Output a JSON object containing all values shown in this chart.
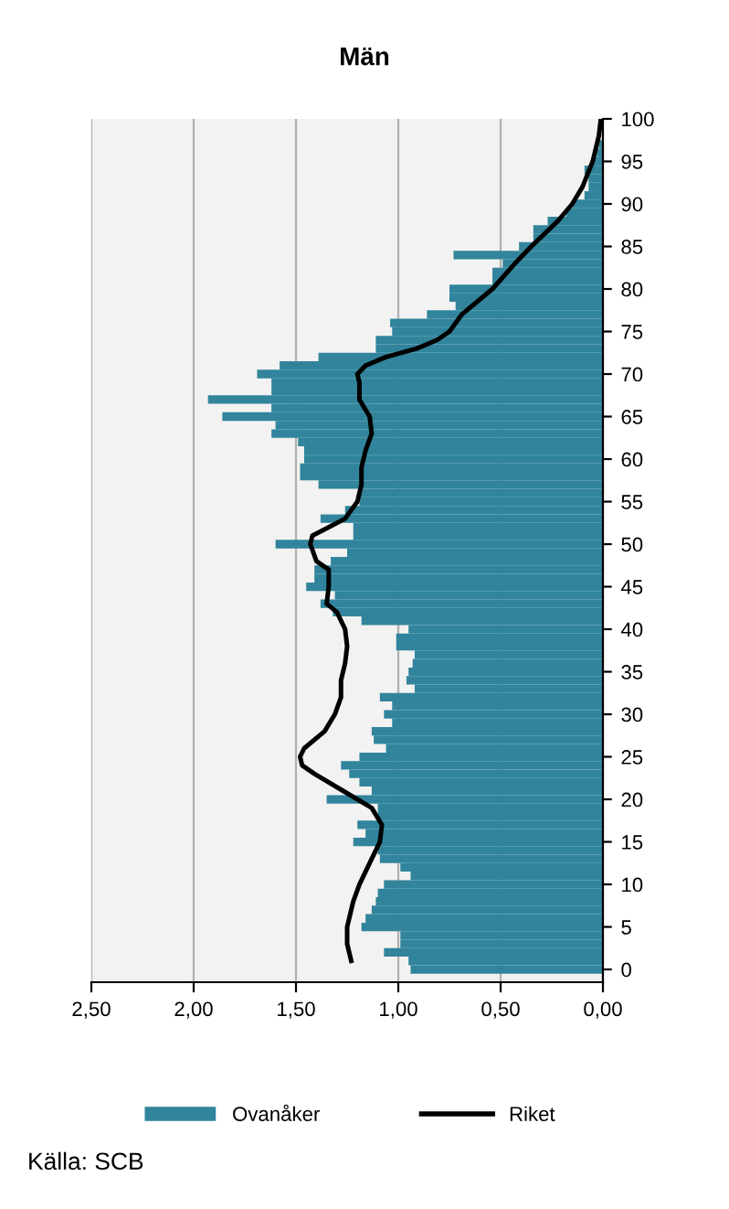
{
  "chart_data": {
    "type": "bar",
    "orientation": "horizontal",
    "title": "Män",
    "x": [
      0,
      1,
      2,
      3,
      4,
      5,
      6,
      7,
      8,
      9,
      10,
      11,
      12,
      13,
      14,
      15,
      16,
      17,
      18,
      19,
      20,
      21,
      22,
      23,
      24,
      25,
      26,
      27,
      28,
      29,
      30,
      31,
      32,
      33,
      34,
      35,
      36,
      37,
      38,
      39,
      40,
      41,
      42,
      43,
      44,
      45,
      46,
      47,
      48,
      49,
      50,
      51,
      52,
      53,
      54,
      55,
      56,
      57,
      58,
      59,
      60,
      61,
      62,
      63,
      64,
      65,
      66,
      67,
      68,
      69,
      70,
      71,
      72,
      73,
      74,
      75,
      76,
      77,
      78,
      79,
      80,
      81,
      82,
      83,
      84,
      85,
      86,
      87,
      88,
      89,
      90,
      91,
      92,
      93,
      94,
      95,
      96,
      97,
      98,
      99,
      100
    ],
    "series": [
      {
        "name": "Ovanåker",
        "color": "#31849b",
        "values": [
          0.94,
          0.95,
          1.07,
          0.99,
          0.99,
          1.18,
          1.16,
          1.13,
          1.11,
          1.1,
          1.07,
          0.94,
          0.99,
          1.09,
          1.1,
          1.22,
          1.16,
          1.2,
          1.1,
          1.1,
          1.35,
          1.13,
          1.19,
          1.24,
          1.28,
          1.19,
          1.06,
          1.12,
          1.13,
          1.03,
          1.07,
          1.03,
          1.09,
          0.92,
          0.96,
          0.95,
          0.93,
          0.92,
          1.01,
          1.01,
          0.95,
          1.18,
          1.32,
          1.38,
          1.31,
          1.45,
          1.41,
          1.41,
          1.33,
          1.25,
          1.6,
          1.22,
          1.22,
          1.38,
          1.26,
          1.19,
          1.19,
          1.39,
          1.48,
          1.48,
          1.46,
          1.46,
          1.49,
          1.62,
          1.6,
          1.86,
          1.62,
          1.93,
          1.62,
          1.62,
          1.69,
          1.58,
          1.39,
          1.11,
          1.11,
          1.03,
          1.04,
          0.86,
          0.72,
          0.75,
          0.75,
          0.54,
          0.54,
          0.49,
          0.73,
          0.41,
          0.34,
          0.34,
          0.27,
          0.18,
          0.15,
          0.09,
          0.07,
          0.07,
          0.09,
          0.05,
          0.03,
          0.02,
          null,
          null,
          0.01
        ]
      },
      {
        "name": "Riket",
        "type": "line",
        "color": "#000000",
        "x": [
          1,
          3,
          5,
          8,
          10,
          13,
          15,
          17,
          19,
          21,
          23,
          24,
          25,
          26,
          28,
          30,
          32,
          34,
          36,
          38,
          40,
          42,
          43,
          45,
          47,
          48,
          50,
          51,
          52,
          53,
          55,
          57,
          59,
          61,
          63,
          65,
          67,
          69,
          70,
          71,
          72,
          73,
          74,
          75,
          77,
          80,
          83,
          85,
          88,
          90,
          92,
          95,
          98,
          100
        ],
        "values": [
          1.23,
          1.25,
          1.25,
          1.22,
          1.19,
          1.13,
          1.09,
          1.08,
          1.13,
          1.27,
          1.41,
          1.47,
          1.48,
          1.46,
          1.36,
          1.31,
          1.28,
          1.28,
          1.26,
          1.25,
          1.26,
          1.3,
          1.35,
          1.34,
          1.34,
          1.4,
          1.43,
          1.42,
          1.34,
          1.26,
          1.2,
          1.18,
          1.18,
          1.16,
          1.13,
          1.14,
          1.19,
          1.19,
          1.2,
          1.16,
          1.06,
          0.91,
          0.81,
          0.75,
          0.69,
          0.54,
          0.43,
          0.35,
          0.22,
          0.15,
          0.1,
          0.05,
          0.02,
          0.01
        ]
      }
    ],
    "xlim": [
      2.5,
      0
    ],
    "xticks": [
      {
        "value": 2.5,
        "label": "2,50"
      },
      {
        "value": 2.0,
        "label": "2,00"
      },
      {
        "value": 1.5,
        "label": "1,50"
      },
      {
        "value": 1.0,
        "label": "1,00"
      },
      {
        "value": 0.5,
        "label": "0,50"
      },
      {
        "value": 0,
        "label": "0,00"
      }
    ],
    "ylim": [
      -1.5,
      100
    ],
    "yticks": [
      0,
      5,
      10,
      15,
      20,
      25,
      30,
      35,
      40,
      45,
      50,
      55,
      60,
      65,
      70,
      75,
      80,
      85,
      90,
      95,
      100
    ],
    "grid": "x",
    "legend": "bottom",
    "annotations": [
      "Källa: SCB"
    ]
  }
}
